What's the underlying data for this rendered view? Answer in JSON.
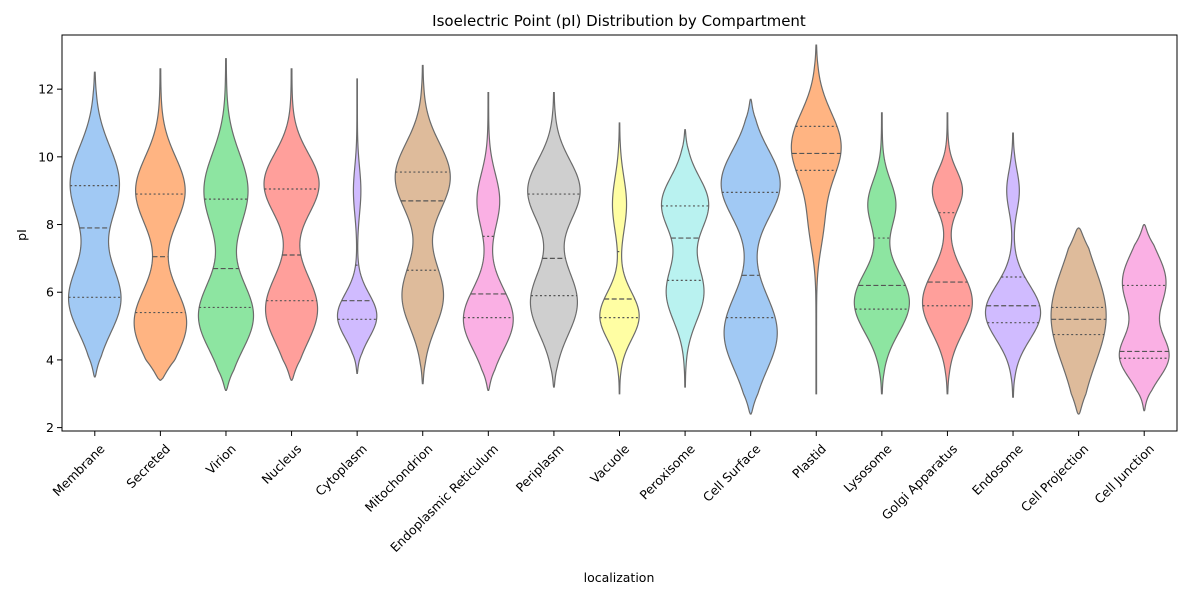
{
  "chart_data": {
    "type": "violin",
    "title": "Isoelectric Point (pI) Distribution by Compartment",
    "xlabel": "localization",
    "ylabel": "pI",
    "ylim": [
      1.9,
      13.6
    ],
    "yticks": [
      2,
      4,
      6,
      8,
      10,
      12
    ],
    "inner": "quartile",
    "grid": false,
    "categories": [
      "Membrane",
      "Secreted",
      "Virion",
      "Nucleus",
      "Cytoplasm",
      "Mitochondrion",
      "Endoplasmic Reticulum",
      "Periplasm",
      "Vacuole",
      "Peroxisome",
      "Cell Surface",
      "Plastid",
      "Lysosome",
      "Golgi Apparatus",
      "Endosome",
      "Cell Projection",
      "Cell Junction"
    ],
    "colors": [
      "#a1c9f4",
      "#ffb482",
      "#8de5a1",
      "#ff9f9b",
      "#d0bbff",
      "#debb9b",
      "#fab0e4",
      "#cfcfcf",
      "#fffea3",
      "#b9f2f0",
      "#a1c9f4",
      "#ffb482",
      "#8de5a1",
      "#ff9f9b",
      "#d0bbff",
      "#debb9b",
      "#fab0e4"
    ],
    "violins": [
      {
        "min": 3.5,
        "max": 12.5,
        "q1": 5.85,
        "median": 7.9,
        "q3": 9.15,
        "modes": [
          [
            5.8,
            1.0,
            0.9
          ],
          [
            9.2,
            1.1,
            0.85
          ]
        ],
        "maxw": 0.4
      },
      {
        "min": 3.4,
        "max": 12.6,
        "q1": 5.4,
        "median": 7.05,
        "q3": 8.9,
        "modes": [
          [
            5.1,
            1.0,
            0.9
          ],
          [
            9.0,
            1.0,
            0.85
          ]
        ],
        "maxw": 0.4
      },
      {
        "min": 3.1,
        "max": 12.9,
        "q1": 5.55,
        "median": 6.7,
        "q3": 8.75,
        "modes": [
          [
            5.3,
            1.0,
            1.0
          ],
          [
            9.0,
            1.1,
            0.8
          ]
        ],
        "maxw": 0.42
      },
      {
        "min": 3.4,
        "max": 12.6,
        "q1": 5.75,
        "median": 7.1,
        "q3": 9.05,
        "modes": [
          [
            5.5,
            1.0,
            0.85
          ],
          [
            9.2,
            0.9,
            0.9
          ]
        ],
        "maxw": 0.42
      },
      {
        "min": 3.6,
        "max": 12.3,
        "q1": 5.2,
        "median": 5.75,
        "q3": 6.8,
        "modes": [
          [
            5.3,
            0.65,
            1.0
          ],
          [
            9.0,
            0.7,
            0.18
          ]
        ],
        "maxw": 0.3
      },
      {
        "min": 3.3,
        "max": 12.7,
        "q1": 6.65,
        "median": 8.7,
        "q3": 9.55,
        "modes": [
          [
            5.9,
            0.95,
            0.75
          ],
          [
            9.4,
            1.0,
            1.0
          ]
        ],
        "maxw": 0.42
      },
      {
        "min": 3.1,
        "max": 11.9,
        "q1": 5.25,
        "median": 5.95,
        "q3": 7.65,
        "modes": [
          [
            5.2,
            0.9,
            1.0
          ],
          [
            8.7,
            0.8,
            0.45
          ]
        ],
        "maxw": 0.38
      },
      {
        "min": 3.2,
        "max": 11.9,
        "q1": 5.9,
        "median": 7.0,
        "q3": 8.9,
        "modes": [
          [
            5.7,
            0.95,
            0.85
          ],
          [
            9.0,
            0.9,
            0.95
          ]
        ],
        "maxw": 0.4
      },
      {
        "min": 3.0,
        "max": 11.0,
        "q1": 5.25,
        "median": 5.8,
        "q3": 7.2,
        "modes": [
          [
            5.3,
            0.7,
            1.0
          ],
          [
            8.6,
            0.8,
            0.35
          ]
        ],
        "maxw": 0.3
      },
      {
        "min": 3.2,
        "max": 10.8,
        "q1": 6.35,
        "median": 7.6,
        "q3": 8.55,
        "modes": [
          [
            6.0,
            0.85,
            0.8
          ],
          [
            8.6,
            0.8,
            1.0
          ]
        ],
        "maxw": 0.36
      },
      {
        "min": 2.4,
        "max": 11.7,
        "q1": 5.25,
        "median": 6.5,
        "q3": 8.95,
        "modes": [
          [
            4.8,
            1.1,
            0.9
          ],
          [
            9.2,
            1.0,
            1.0
          ]
        ],
        "maxw": 0.45
      },
      {
        "min": 3.0,
        "max": 13.3,
        "q1": 9.6,
        "median": 10.1,
        "q3": 10.9,
        "modes": [
          [
            10.3,
            1.0,
            1.0
          ],
          [
            8.0,
            0.8,
            0.25
          ]
        ],
        "maxw": 0.38
      },
      {
        "min": 3.0,
        "max": 11.3,
        "q1": 5.5,
        "median": 6.2,
        "q3": 7.6,
        "modes": [
          [
            5.7,
            0.9,
            1.0
          ],
          [
            8.6,
            0.7,
            0.5
          ]
        ],
        "maxw": 0.42
      },
      {
        "min": 3.0,
        "max": 11.3,
        "q1": 5.6,
        "median": 6.3,
        "q3": 8.35,
        "modes": [
          [
            5.7,
            0.9,
            1.0
          ],
          [
            9.0,
            0.6,
            0.6
          ]
        ],
        "maxw": 0.38
      },
      {
        "min": 2.9,
        "max": 10.7,
        "q1": 5.1,
        "median": 5.6,
        "q3": 6.45,
        "modes": [
          [
            5.4,
            0.8,
            1.0
          ],
          [
            9.0,
            0.6,
            0.22
          ]
        ],
        "maxw": 0.42
      },
      {
        "min": 2.4,
        "max": 7.9,
        "q1": 4.75,
        "median": 5.2,
        "q3": 5.55,
        "modes": [
          [
            5.3,
            1.4,
            1.0
          ]
        ],
        "maxw": 0.42
      },
      {
        "min": 2.5,
        "max": 8.0,
        "q1": 4.05,
        "median": 4.25,
        "q3": 6.2,
        "modes": [
          [
            4.1,
            0.65,
            1.0
          ],
          [
            6.3,
            0.85,
            0.9
          ]
        ],
        "maxw": 0.38
      }
    ]
  }
}
